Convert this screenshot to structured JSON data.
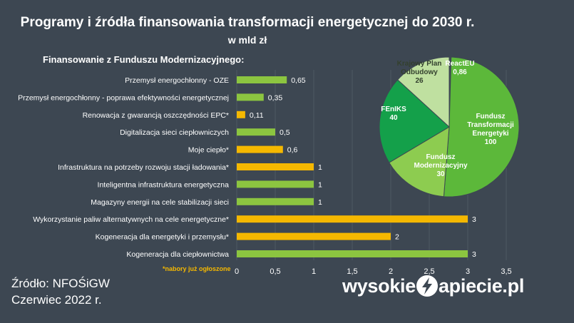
{
  "chart_data": [
    {
      "type": "bar",
      "orientation": "horizontal",
      "title": "Programy i źródła finansowania transformacji energetycznej do 2030 r.",
      "subtitle": "w mld zł",
      "section_title": "Finansowanie z Funduszu Modernizacyjnego:",
      "note": "*nabory już ogłoszone",
      "categories": [
        "Przemysł energochłonny - OZE",
        "Przemysł energochłonny - poprawa efektywności energetycznej",
        "Renowacja z gwarancją oszczędności EPC*",
        "Digitalizacja sieci ciepłowniczych",
        "Moje ciepło*",
        "Infrastruktura na potrzeby rozwoju stacji ładowania*",
        "Inteligentna infrastruktura energetyczna",
        "Magazyny energii na cele stabilizacji sieci",
        "Wykorzystanie paliw alternatywnych na cele energetyczne*",
        "Kogeneracja dla energetyki i przemysłu*",
        "Kogeneracja dla ciepłownictwa"
      ],
      "values": [
        0.65,
        0.35,
        0.11,
        0.5,
        0.6,
        1,
        1,
        1,
        3,
        2,
        3
      ],
      "value_labels": [
        "0,65",
        "0,35",
        "0,11",
        "0,5",
        "0,6",
        "1",
        "1",
        "1",
        "3",
        "2",
        "3"
      ],
      "announced": [
        false,
        false,
        true,
        false,
        true,
        true,
        false,
        false,
        true,
        true,
        false
      ],
      "xlim": [
        0,
        3.5
      ],
      "xticks": [
        0,
        0.5,
        1,
        1.5,
        2,
        2.5,
        3,
        3.5
      ],
      "xtick_labels": [
        "0",
        "0,5",
        "1",
        "1,5",
        "2",
        "2,5",
        "3",
        "3,5"
      ],
      "colors": {
        "default": "#8cc540",
        "announced": "#f5b800"
      }
    },
    {
      "type": "pie",
      "slices": [
        {
          "label": "ReactEU",
          "value": 0.86,
          "value_label": "0,86",
          "color": "#3f4a52",
          "text_color": "#ffffff"
        },
        {
          "label": "Fundusz Transformacji Energetyki",
          "value": 100,
          "value_label": "100",
          "color": "#5cb83a",
          "text_color": "#ffffff"
        },
        {
          "label": "Fundusz Modernizacyjny",
          "value": 30,
          "value_label": "30",
          "color": "#8dcc50",
          "text_color": "#ffffff"
        },
        {
          "label": "FEnIKS",
          "value": 40,
          "value_label": "40",
          "color": "#14a04a",
          "text_color": "#ffffff"
        },
        {
          "label": "Krajowy Plan Odbudowy",
          "value": 26,
          "value_label": "26",
          "color": "#bfe0a0",
          "text_color": "#33402e"
        }
      ]
    }
  ],
  "footer": {
    "source": "Źródło: NFOŚiGW",
    "date": "Czerwiec 2022 r."
  },
  "logo": {
    "left": "wysokie",
    "right": "apiecie.pl"
  },
  "colors": {
    "background": "#3d4752",
    "text": "#ffffff"
  }
}
